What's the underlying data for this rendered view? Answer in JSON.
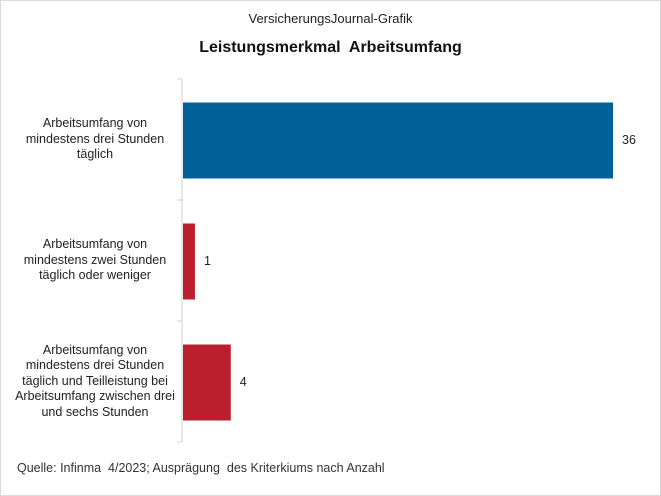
{
  "header": {
    "brand": "VersicherungsJournal-Grafik",
    "title": "Leistungsmerkmal  Arbeitsumfang"
  },
  "chart_data": {
    "type": "bar",
    "orientation": "horizontal",
    "categories": [
      "Arbeitsumfang von mindestens drei Stunden täglich",
      "Arbeitsumfang von mindestens zwei Stunden täglich oder weniger",
      "Arbeitsumfang von mindestens drei Stunden täglich und Teilleistung bei Arbeitsumfang zwischen drei und sechs Stunden"
    ],
    "values": [
      36,
      1,
      4
    ],
    "value_labels": [
      "36",
      "1",
      "4"
    ],
    "bar_colors": [
      "#006199",
      "#bb1f2d",
      "#bb1f2d"
    ],
    "xlim": [
      0,
      36
    ],
    "grid": false,
    "legend": "none"
  },
  "footer": {
    "source": "Quelle: Infinma  4/2023; Ausprägung  des Kriterkiums nach Anzahl"
  }
}
